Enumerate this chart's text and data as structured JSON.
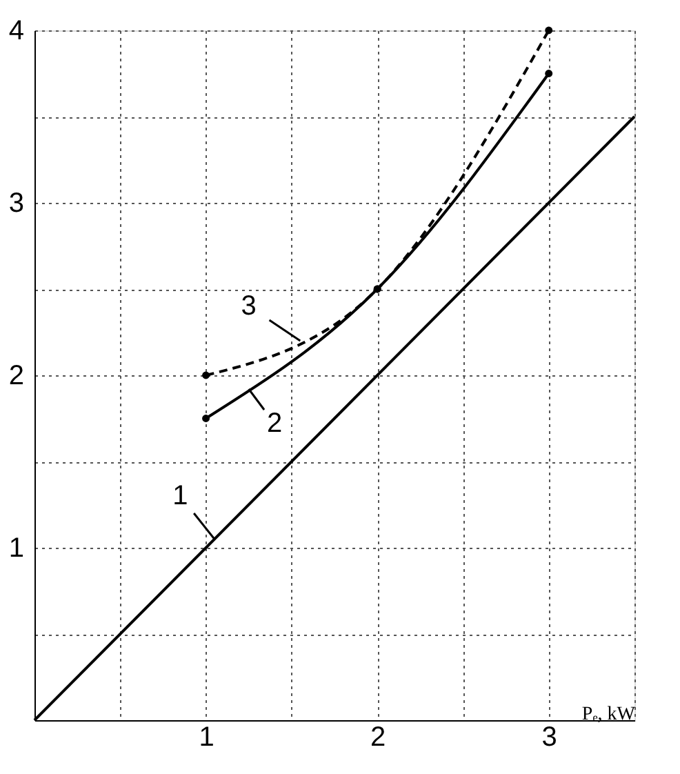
{
  "chart_data": {
    "type": "line",
    "xlabel": "Pₑ, kW",
    "xlim": [
      0,
      3.5
    ],
    "ylim": [
      0,
      4
    ],
    "xticks": [
      {
        "value": 0.5,
        "label": null
      },
      1,
      {
        "value": 1.5,
        "label": null
      },
      2,
      {
        "value": 2.5,
        "label": null
      },
      3,
      {
        "value": 3.5,
        "label": null
      }
    ],
    "yticks": [
      {
        "value": 0.5,
        "label": null
      },
      1,
      {
        "value": 1.5,
        "label": null
      },
      2,
      {
        "value": 2.5,
        "label": null
      },
      3,
      {
        "value": 3.5,
        "label": null
      },
      4
    ],
    "grid": true,
    "series": [
      {
        "x": [
          0,
          3.5
        ],
        "values": [
          0,
          3.5
        ],
        "color": "#000000",
        "line_style": "solid",
        "marker": "none"
      },
      {
        "x": [
          1,
          2,
          3
        ],
        "values": [
          1.75,
          2.5,
          3.75
        ],
        "color": "#000000",
        "line_style": "solid",
        "marker": "circle"
      },
      {
        "x": [
          1,
          2,
          3
        ],
        "values": [
          2.0,
          2.5,
          4.0
        ],
        "color": "#000000",
        "line_style": "dashed",
        "marker": "circle"
      }
    ],
    "annotations": [
      {
        "text": "1",
        "x": 1.05,
        "y": 1.05
      },
      {
        "text": "2",
        "x": 1.25,
        "y": 1.92
      },
      {
        "text": "3",
        "x": 1.55,
        "y": 2.2
      }
    ]
  }
}
